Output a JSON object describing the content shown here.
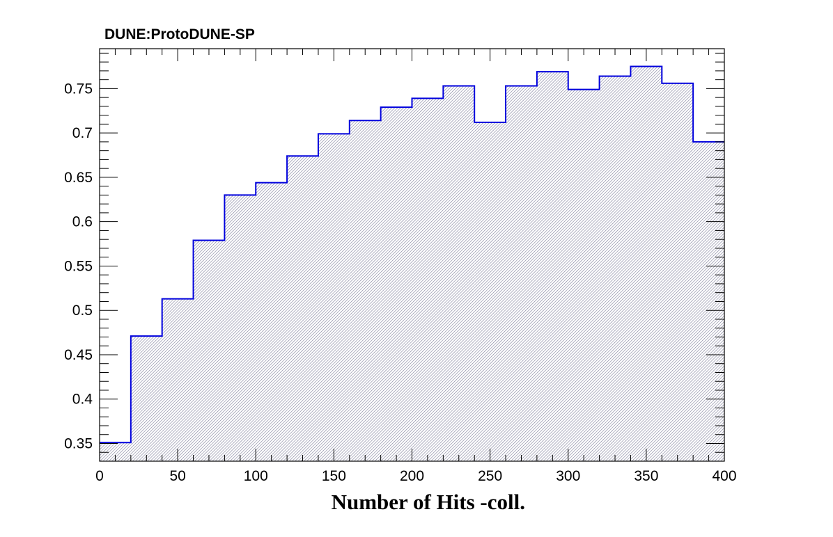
{
  "chart_data": {
    "type": "bar",
    "title": "DUNE:ProtoDUNE-SP",
    "xlabel": "Number of Hits -coll.",
    "ylabel": "",
    "xlim": [
      0,
      400
    ],
    "ylim": [
      0.33,
      0.795
    ],
    "bin_width": 20,
    "bin_edges": [
      0,
      20,
      40,
      60,
      80,
      100,
      120,
      140,
      160,
      180,
      200,
      220,
      240,
      260,
      280,
      300,
      320,
      340,
      360,
      380,
      400
    ],
    "values": [
      0.351,
      0.471,
      0.513,
      0.579,
      0.63,
      0.644,
      0.674,
      0.699,
      0.714,
      0.729,
      0.739,
      0.753,
      0.712,
      0.753,
      0.769,
      0.749,
      0.764,
      0.775,
      0.756,
      0.69
    ],
    "x_ticks": [
      "0",
      "50",
      "100",
      "150",
      "200",
      "250",
      "300",
      "350",
      "400"
    ],
    "y_ticks": [
      "0.35",
      "0.4",
      "0.45",
      "0.5",
      "0.55",
      "0.6",
      "0.65",
      "0.7",
      "0.75"
    ],
    "grid": false,
    "colors": {
      "line": "#0000dd",
      "fill_hatch": "#7d7d9a",
      "axis": "#000000"
    }
  }
}
